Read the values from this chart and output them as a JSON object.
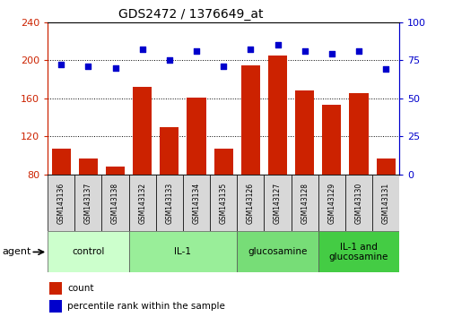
{
  "title": "GDS2472 / 1376649_at",
  "samples": [
    "GSM143136",
    "GSM143137",
    "GSM143138",
    "GSM143132",
    "GSM143133",
    "GSM143134",
    "GSM143135",
    "GSM143126",
    "GSM143127",
    "GSM143128",
    "GSM143129",
    "GSM143130",
    "GSM143131"
  ],
  "counts": [
    107,
    97,
    88,
    172,
    130,
    161,
    107,
    195,
    205,
    168,
    153,
    165,
    97
  ],
  "percentiles": [
    72,
    71,
    70,
    82,
    75,
    81,
    71,
    82,
    85,
    81,
    79,
    81,
    69
  ],
  "groups": [
    {
      "label": "control",
      "start": 0,
      "end": 3,
      "color": "#ccffcc"
    },
    {
      "label": "IL-1",
      "start": 3,
      "end": 7,
      "color": "#99ee99"
    },
    {
      "label": "glucosamine",
      "start": 7,
      "end": 10,
      "color": "#77dd77"
    },
    {
      "label": "IL-1 and\nglucosamine",
      "start": 10,
      "end": 13,
      "color": "#44cc44"
    }
  ],
  "bar_color": "#cc2200",
  "dot_color": "#0000cc",
  "ylim_left": [
    80,
    240
  ],
  "ylim_right": [
    0,
    100
  ],
  "yticks_left": [
    80,
    120,
    160,
    200,
    240
  ],
  "yticks_right": [
    0,
    25,
    50,
    75,
    100
  ],
  "left_tick_color": "#cc2200",
  "right_tick_color": "#0000cc",
  "agent_label": "agent",
  "legend_count": "count",
  "legend_percentile": "percentile rank within the sample",
  "sample_bg": "#d8d8d8",
  "group_colors": [
    "#ccffcc",
    "#99ee99",
    "#77dd77",
    "#44cc44"
  ]
}
